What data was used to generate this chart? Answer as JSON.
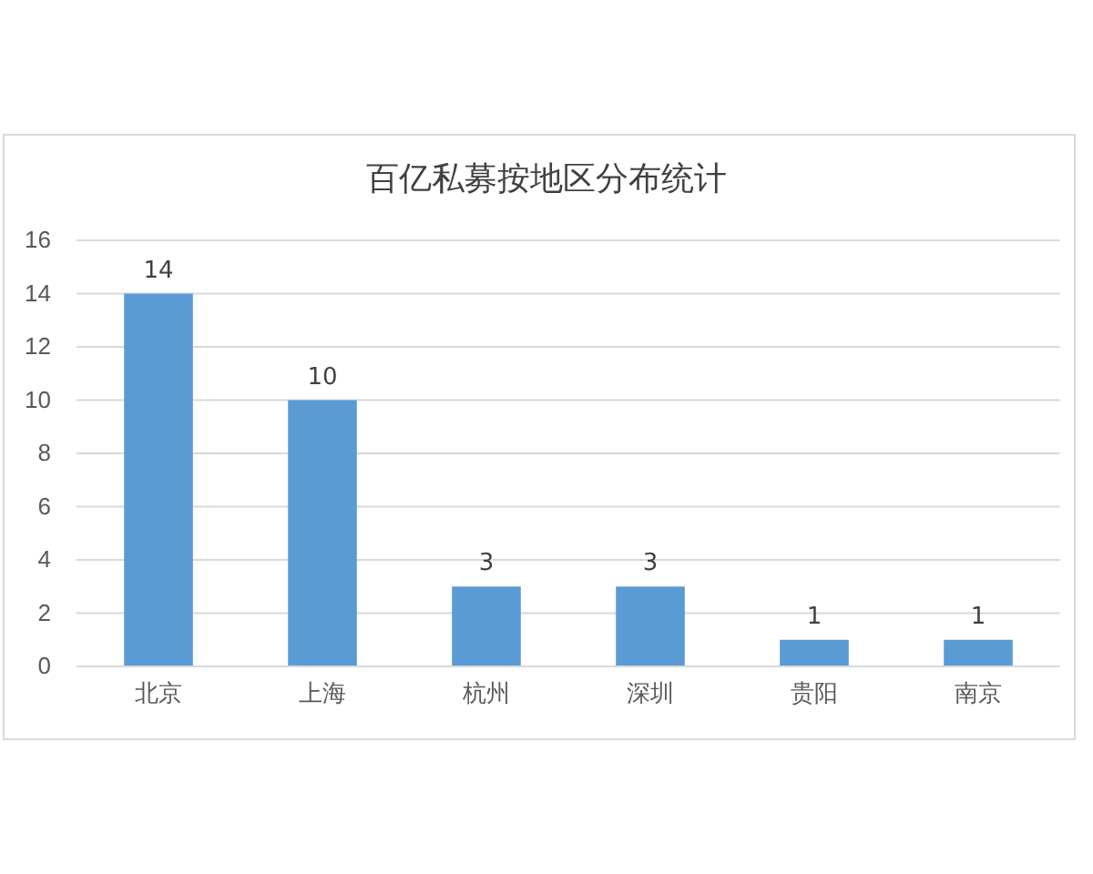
{
  "chart_data": {
    "type": "bar",
    "title": "百亿私募按地区分布统计",
    "categories": [
      "北京",
      "上海",
      "杭州",
      "深圳",
      "贵阳",
      "南京"
    ],
    "values": [
      14,
      10,
      3,
      3,
      1,
      1
    ],
    "color": "#5b9bd5",
    "ylim": [
      0,
      16
    ],
    "yticks": [
      0,
      2,
      4,
      6,
      8,
      10,
      12,
      14,
      16
    ],
    "grid": "y",
    "data_labels": true
  }
}
